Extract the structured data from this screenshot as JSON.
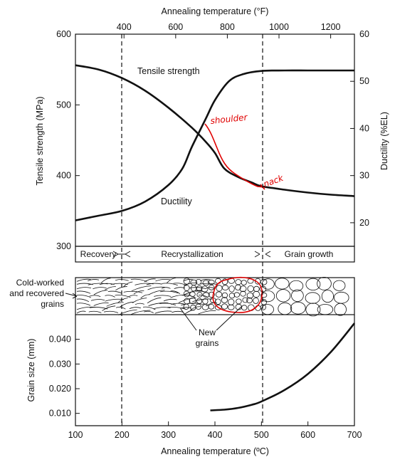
{
  "chart_data": [
    {
      "type": "line",
      "panel": "upper",
      "top_xlabel": "Annealing temperature (°F)",
      "top_xticks": [
        "400",
        "600",
        "800",
        "1000",
        "1200"
      ],
      "top_xtick_values_F": [
        400,
        600,
        800,
        1000,
        1200
      ],
      "ylabel_left": "Tensile strength (MPa)",
      "ylim_left": [
        300,
        600
      ],
      "yticks_left": [
        "300",
        "400",
        "500",
        "600"
      ],
      "ylabel_right": "Ductility (%EL)",
      "ylim_right": [
        15,
        60
      ],
      "yticks_right": [
        "20",
        "30",
        "40",
        "50",
        "60"
      ],
      "x_units": "°C",
      "xlim": [
        100,
        700
      ],
      "series": [
        {
          "name": "Tensile strength",
          "axis": "left",
          "x": [
            100,
            150,
            200,
            250,
            300,
            350,
            380,
            400,
            420,
            450,
            480,
            500,
            550,
            600,
            650,
            700
          ],
          "y": [
            556,
            550,
            538,
            520,
            496,
            468,
            448,
            432,
            410,
            398,
            390,
            385,
            380,
            376,
            373,
            371
          ]
        },
        {
          "name": "Ductility",
          "axis": "right",
          "x": [
            100,
            150,
            200,
            250,
            300,
            330,
            350,
            380,
            400,
            430,
            460,
            500,
            550,
            600,
            650,
            700
          ],
          "y": [
            20.5,
            21.5,
            22.5,
            24.5,
            28,
            31.5,
            36,
            42,
            46,
            50,
            51.5,
            52.2,
            52.3,
            52.3,
            52.3,
            52.3
          ]
        }
      ],
      "annotations": {
        "tensile_label": "Tensile strength",
        "ductility_label": "Ductility",
        "handwritten_1": "shoulder",
        "handwritten_2": "nack"
      },
      "vertical_markers_C": [
        200,
        500
      ],
      "grid": false
    },
    {
      "type": "line",
      "panel": "lower",
      "xlabel": "Annealing temperature (ºC)",
      "xticks": [
        "100",
        "200",
        "300",
        "400",
        "500",
        "600",
        "700"
      ],
      "xlim": [
        100,
        700
      ],
      "ylabel": "Grain size (mm)",
      "ylim": [
        0.005,
        0.05
      ],
      "yticks": [
        "0.010",
        "0.020",
        "0.030",
        "0.040"
      ],
      "series": [
        {
          "name": "Grain size",
          "x": [
            390,
            420,
            450,
            480,
            500,
            550,
            600,
            650,
            700
          ],
          "y": [
            0.0112,
            0.0115,
            0.0122,
            0.0135,
            0.0148,
            0.0195,
            0.026,
            0.035,
            0.0465
          ]
        }
      ],
      "grid": false
    }
  ],
  "regions": {
    "recovery": "Recovery",
    "recrystallization": "Recrystallization",
    "grain_growth": "Grain growth"
  },
  "micro_labels": {
    "cold_worked_line1": "Cold-worked",
    "cold_worked_line2": "and recovered",
    "cold_worked_line3": "grains",
    "new_grains_line1": "New",
    "new_grains_line2": "grains"
  },
  "colors": {
    "ink": "#111111",
    "annotation": "#e00000"
  }
}
